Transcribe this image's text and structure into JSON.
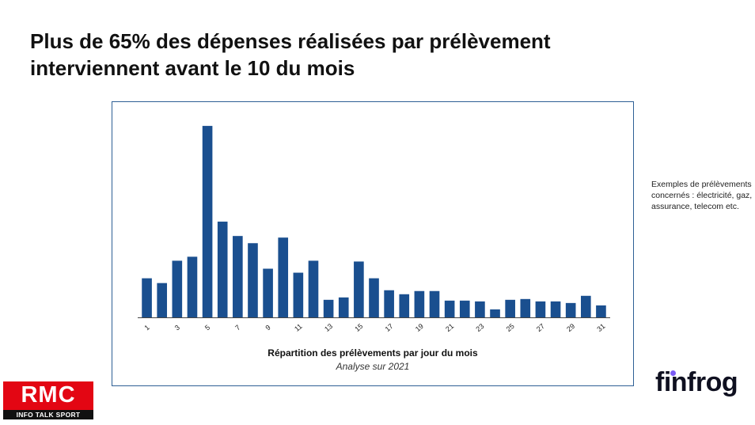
{
  "title": "Plus de 65% des dépenses réalisées par prélèvement interviennent avant le 10 du mois",
  "chart_data": {
    "type": "bar",
    "title": "Répartition des prélèvements par jour du mois",
    "subtitle": "Analyse sur 2021",
    "xlabel": "",
    "ylabel": "",
    "categories": [
      "1",
      "2",
      "3",
      "4",
      "5",
      "6",
      "7",
      "8",
      "9",
      "10",
      "11",
      "12",
      "13",
      "14",
      "15",
      "16",
      "17",
      "18",
      "19",
      "20",
      "21",
      "22",
      "23",
      "24",
      "25",
      "26",
      "27",
      "28",
      "29",
      "30",
      "31"
    ],
    "tick_labels": [
      "1",
      "3",
      "5",
      "7",
      "9",
      "11",
      "13",
      "15",
      "17",
      "19",
      "21",
      "23",
      "25",
      "27",
      "29",
      "31"
    ],
    "values": [
      4.9,
      4.3,
      7.1,
      7.6,
      24.0,
      12.0,
      10.2,
      9.3,
      6.1,
      10.0,
      5.6,
      7.1,
      2.2,
      2.5,
      7.0,
      4.9,
      3.4,
      2.9,
      3.3,
      3.3,
      2.1,
      2.1,
      2.0,
      1.0,
      2.2,
      2.3,
      2.0,
      2.0,
      1.8,
      2.7,
      1.5
    ],
    "ylim": [
      0,
      25
    ],
    "grid": false,
    "bar_color": "#1a4f8f"
  },
  "side_note": "Exemples de prélèvements concernés : électricité, gaz, assurance, telecom etc.",
  "logos": {
    "rmc": "RMC",
    "rmc_tagline": "INFO TALK SPORT",
    "finfrog": "finfrog"
  },
  "colors": {
    "bar": "#1a4f8f",
    "frame": "#2e5f95",
    "rmc_red": "#e30613",
    "finfrog_dot": "#7b5cf5"
  }
}
